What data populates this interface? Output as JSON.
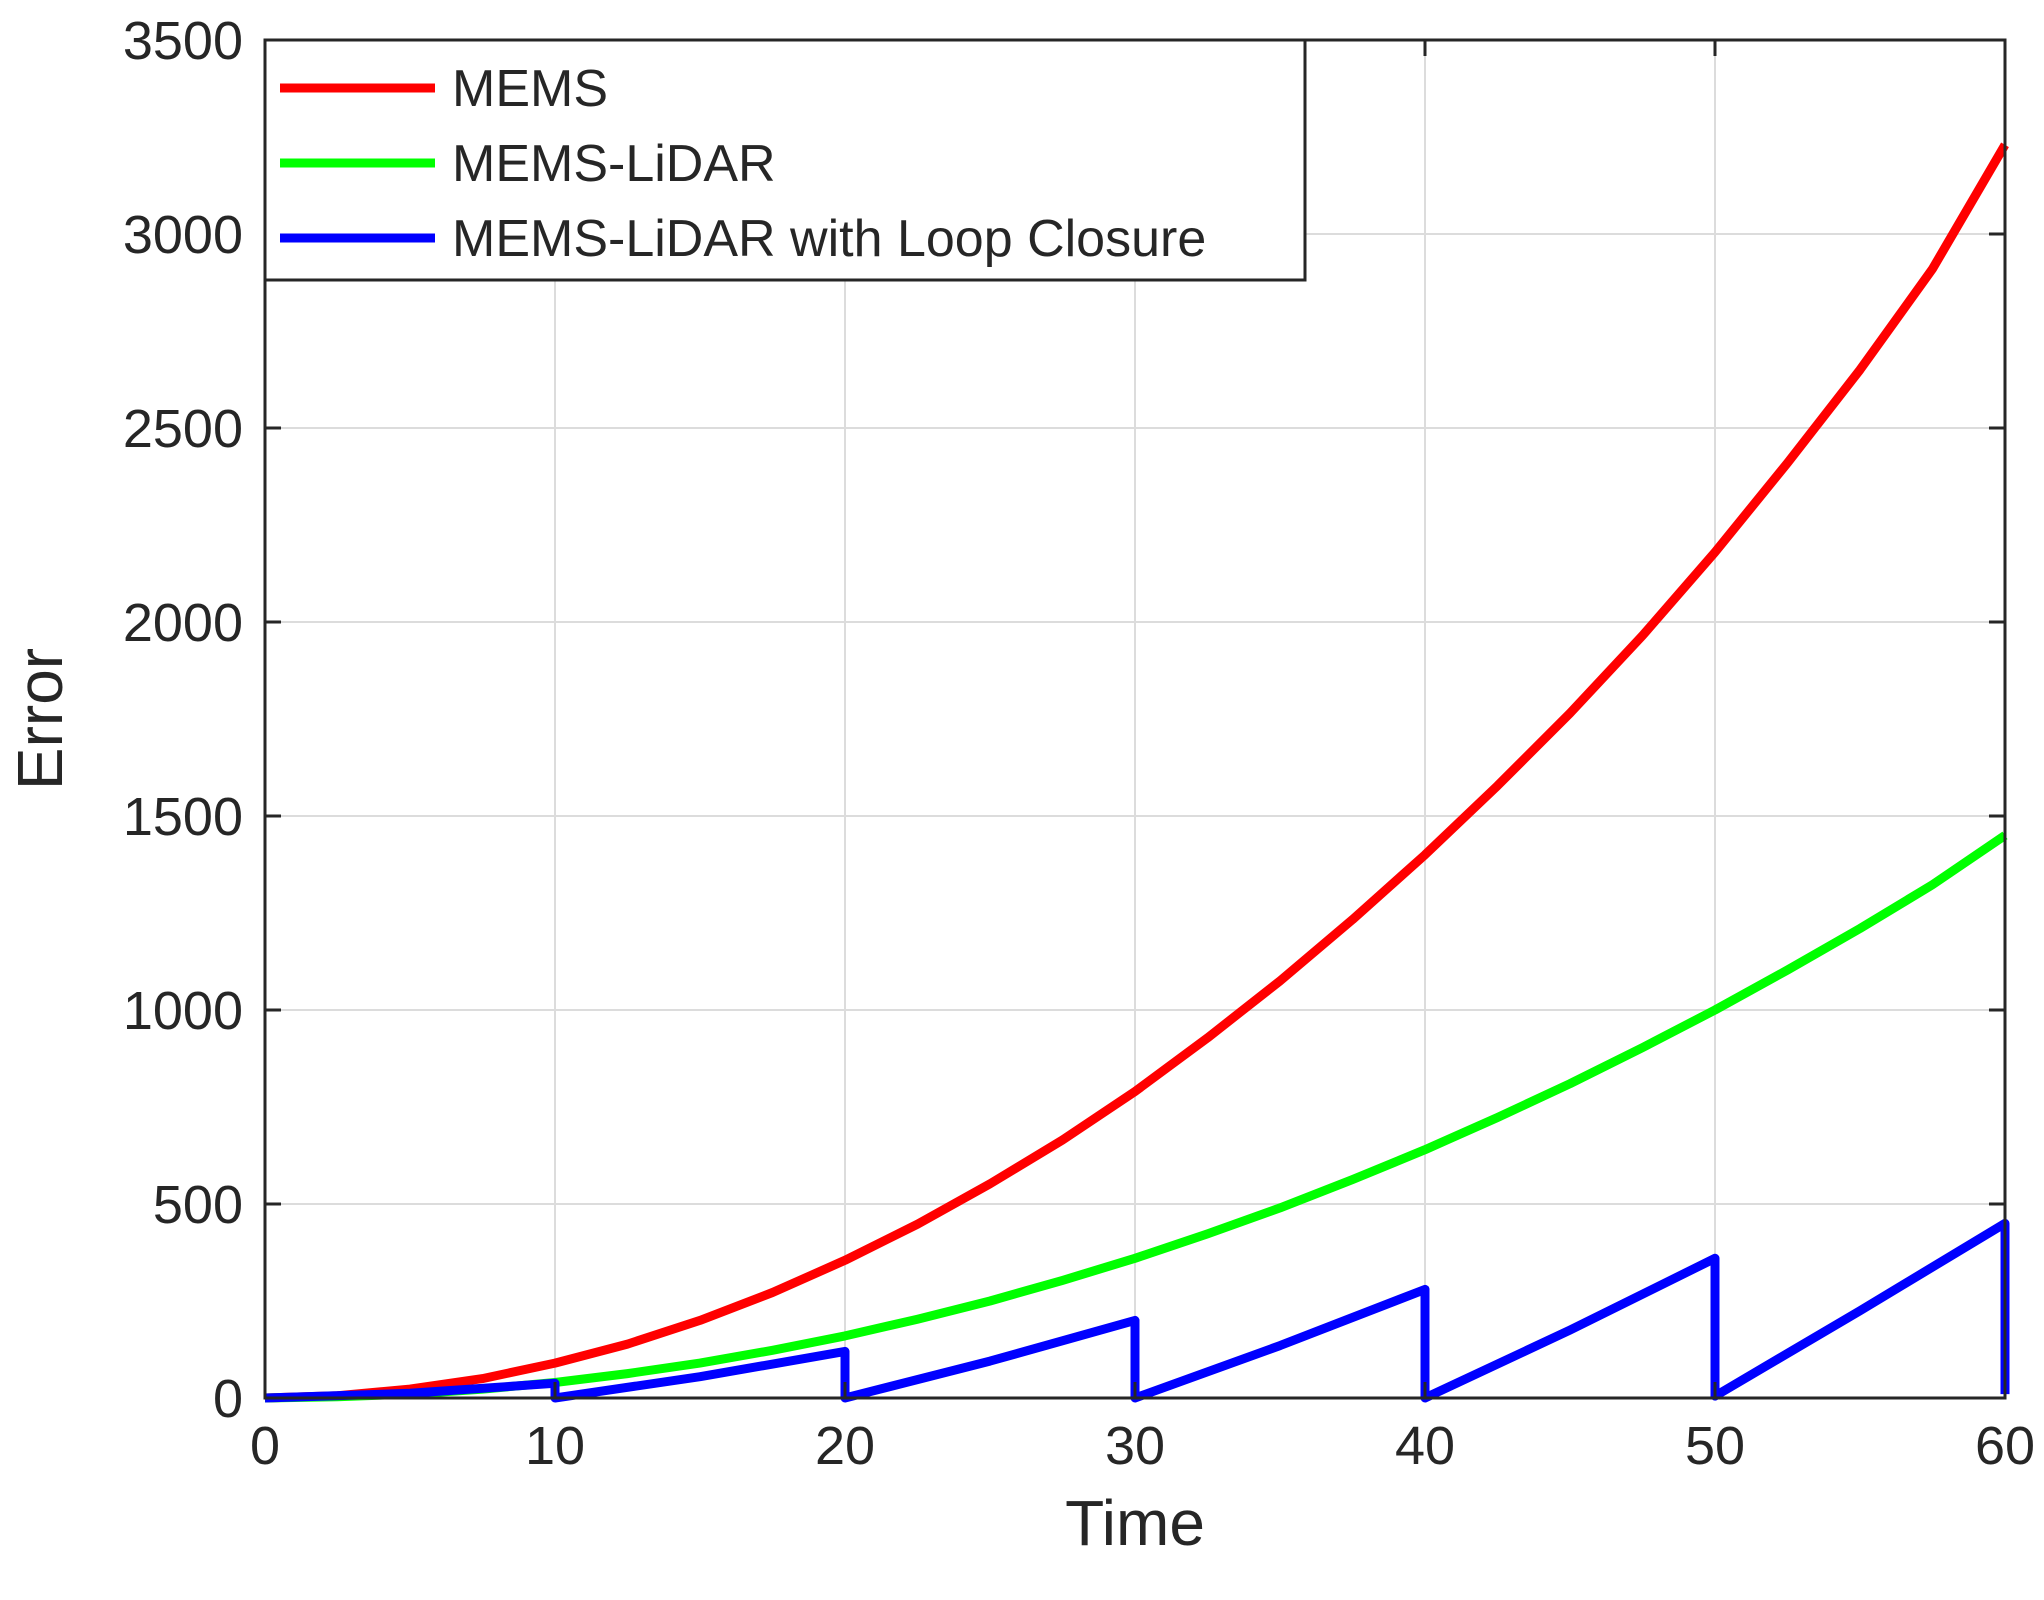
{
  "chart_data": {
    "type": "line",
    "title": "",
    "xlabel": "Time",
    "ylabel": "Error",
    "xlim": [
      0,
      60
    ],
    "ylim": [
      0,
      3500
    ],
    "x_ticks": [
      "0",
      "10",
      "20",
      "30",
      "40",
      "50",
      "60"
    ],
    "y_ticks": [
      "0",
      "500",
      "1000",
      "1500",
      "2000",
      "2500",
      "3000",
      "3500"
    ],
    "grid": true,
    "legend_position": "top-left",
    "series": [
      {
        "name": "MEMS",
        "color": "#ff0000",
        "points": [
          [
            0,
            0
          ],
          [
            2.5,
            6
          ],
          [
            5,
            23
          ],
          [
            7.5,
            50
          ],
          [
            10,
            90
          ],
          [
            12.5,
            139
          ],
          [
            15,
            200
          ],
          [
            17.5,
            272
          ],
          [
            20,
            355
          ],
          [
            22.5,
            448
          ],
          [
            25,
            552
          ],
          [
            27.5,
            665
          ],
          [
            30,
            790
          ],
          [
            32.5,
            928
          ],
          [
            35,
            1075
          ],
          [
            37.5,
            1233
          ],
          [
            40,
            1400
          ],
          [
            42.5,
            1578
          ],
          [
            45,
            1765
          ],
          [
            47.5,
            1965
          ],
          [
            50,
            2180
          ],
          [
            52.5,
            2410
          ],
          [
            55,
            2650
          ],
          [
            57.5,
            2910
          ],
          [
            60,
            3230
          ]
        ]
      },
      {
        "name": "MEMS-LiDAR",
        "color": "#00ff00",
        "points": [
          [
            0,
            0
          ],
          [
            2.5,
            3
          ],
          [
            5,
            10
          ],
          [
            7.5,
            23
          ],
          [
            10,
            40
          ],
          [
            12.5,
            63
          ],
          [
            15,
            90
          ],
          [
            17.5,
            123
          ],
          [
            20,
            160
          ],
          [
            22.5,
            203
          ],
          [
            25,
            250
          ],
          [
            27.5,
            303
          ],
          [
            30,
            360
          ],
          [
            32.5,
            423
          ],
          [
            35,
            490
          ],
          [
            37.5,
            563
          ],
          [
            40,
            640
          ],
          [
            42.5,
            723
          ],
          [
            45,
            810
          ],
          [
            47.5,
            903
          ],
          [
            50,
            1000
          ],
          [
            52.5,
            1103
          ],
          [
            55,
            1210
          ],
          [
            57.5,
            1323
          ],
          [
            60,
            1450
          ]
        ]
      },
      {
        "name": "MEMS-LiDAR with Loop Closure",
        "color": "#0000ff",
        "points": [
          [
            0,
            0
          ],
          [
            5,
            12
          ],
          [
            10,
            38
          ],
          [
            10,
            0
          ],
          [
            15,
            55
          ],
          [
            20,
            120
          ],
          [
            20,
            0
          ],
          [
            25,
            95
          ],
          [
            30,
            200
          ],
          [
            30,
            0
          ],
          [
            35,
            135
          ],
          [
            40,
            280
          ],
          [
            40,
            0
          ],
          [
            45,
            175
          ],
          [
            50,
            360
          ],
          [
            50,
            5
          ],
          [
            55,
            225
          ],
          [
            60,
            450
          ],
          [
            60,
            10
          ]
        ]
      }
    ]
  }
}
